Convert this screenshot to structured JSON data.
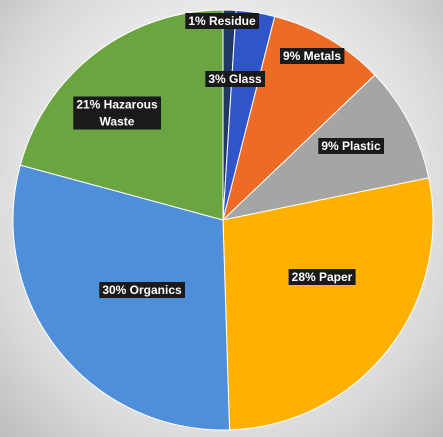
{
  "chart_data": {
    "type": "pie",
    "title": "",
    "slices": [
      {
        "label": "1% Residue",
        "value": 1,
        "color": "#1f3864"
      },
      {
        "label": "3% Glass",
        "value": 3,
        "color": "#2f55c8"
      },
      {
        "label": "9% Metals",
        "value": 9,
        "color": "#ed6b24"
      },
      {
        "label": "9% Plastic",
        "value": 9,
        "color": "#a5a5a5"
      },
      {
        "label": "28% Paper",
        "value": 28,
        "color": "#ffb000"
      },
      {
        "label": "30% Organics",
        "value": 30,
        "color": "#4f8fd9"
      },
      {
        "label": "21% Hazarous Waste",
        "value": 21,
        "color": "#6aa541"
      }
    ],
    "legend": "none",
    "grid": false
  }
}
